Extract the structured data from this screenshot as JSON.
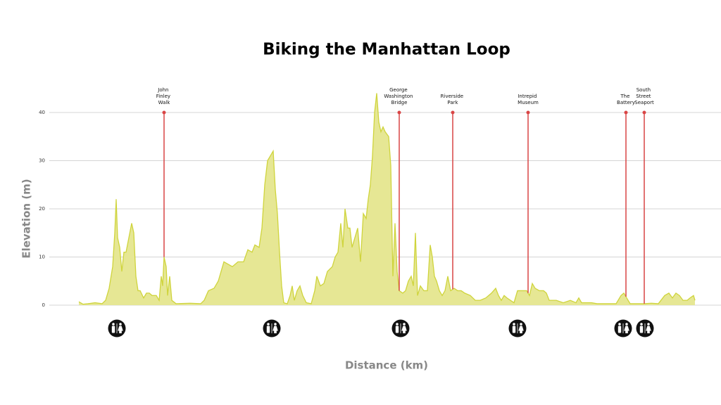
{
  "chart_data": {
    "type": "area",
    "title": "Biking the Manhattan Loop",
    "xlabel": "Distance (km)",
    "ylabel": "Elevation (m)",
    "x": [
      0,
      0.3,
      0.65,
      1.15,
      1.65,
      1.9,
      2.15,
      2.4,
      2.55,
      2.65,
      2.75,
      2.9,
      3.05,
      3.2,
      3.35,
      3.55,
      3.75,
      3.9,
      4.05,
      4.2,
      4.35,
      4.6,
      4.8,
      5,
      5.2,
      5.5,
      5.7,
      5.85,
      5.95,
      6.05,
      6.2,
      6.3,
      6.45,
      6.6,
      6.9,
      7.9,
      8.65,
      8.9,
      9.2,
      9.6,
      9.9,
      10.3,
      10.6,
      10.9,
      11.3,
      11.7,
      12,
      12.3,
      12.5,
      12.8,
      13,
      13.2,
      13.4,
      13.6,
      13.8,
      13.95,
      14.1,
      14.25,
      14.4,
      14.55,
      14.8,
      15,
      15.15,
      15.3,
      15.5,
      15.7,
      15.9,
      16.15,
      16.5,
      16.75,
      16.9,
      17.15,
      17.4,
      17.65,
      18,
      18.2,
      18.4,
      18.6,
      18.75,
      18.9,
      19.1,
      19.25,
      19.4,
      19.6,
      19.8,
      20,
      20.2,
      20.4,
      20.55,
      20.7,
      20.85,
      21,
      21.15,
      21.3,
      21.45,
      21.6,
      21.75,
      22,
      22.15,
      22.3,
      22.45,
      22.6,
      22.75,
      23,
      23.2,
      23.4,
      23.6,
      23.75,
      23.9,
      24.05,
      24.25,
      24.5,
      24.75,
      24.95,
      25.1,
      25.25,
      25.4,
      25.6,
      25.8,
      26,
      26.2,
      26.4,
      26.65,
      26.9,
      27.15,
      27.4,
      27.8,
      28.15,
      28.5,
      28.9,
      29.3,
      29.6,
      29.8,
      30,
      30.2,
      30.4,
      30.65,
      30.9,
      31.15,
      31.4,
      31.8,
      32,
      32.2,
      32.4,
      32.7,
      33,
      33.2,
      33.4,
      33.9,
      34.4,
      34.9,
      35.3,
      35.5,
      35.7,
      36.4,
      36.8,
      37.4,
      38.15,
      38.5,
      38.7,
      38.9,
      39.15,
      39.65,
      40.15,
      40.65,
      41.15,
      41.6,
      41.9,
      42.15,
      42.4,
      42.65,
      42.9,
      43.2,
      43.4,
      43.65,
      43.75
    ],
    "values": [
      0.7,
      0.2,
      0.3,
      0.5,
      0.3,
      1,
      3.5,
      8,
      15,
      22,
      14,
      12,
      7,
      11,
      11,
      14,
      17,
      15,
      6,
      3,
      3,
      1.5,
      2.5,
      2.5,
      2,
      2,
      1,
      6,
      4,
      10,
      8,
      2,
      6,
      1,
      0.3,
      0.4,
      0.3,
      1,
      3,
      3.5,
      5,
      9,
      8.5,
      8,
      9,
      9,
      11.5,
      11,
      12.5,
      12,
      16,
      25,
      30,
      31,
      32,
      24,
      19,
      11,
      4,
      0.5,
      0.3,
      2,
      4,
      1,
      3,
      4,
      2,
      0.5,
      0.3,
      3,
      6,
      4,
      4.5,
      7,
      8,
      10,
      11,
      17,
      12,
      20,
      16,
      16,
      12,
      14,
      16,
      9,
      19,
      18,
      22,
      25,
      31,
      40,
      44,
      38,
      36,
      37,
      36,
      35,
      29,
      6,
      17,
      7,
      3,
      2.5,
      3,
      5,
      6,
      4,
      15,
      2,
      4,
      3,
      3,
      12.5,
      10,
      6,
      5,
      3,
      2,
      3,
      6,
      3,
      3.5,
      3,
      3,
      2.5,
      2,
      1,
      1,
      1.5,
      2.5,
      3.5,
      2,
      1,
      2,
      1.5,
      1,
      0.5,
      3,
      3,
      3,
      2,
      4.5,
      3.5,
      3,
      3,
      2.5,
      1,
      1,
      0.5,
      1,
      0.5,
      1.5,
      0.5,
      0.5,
      0.3,
      0.3,
      0.3,
      2,
      2.5,
      1.5,
      0.3,
      0.3,
      0.3,
      0.4,
      0.3,
      2,
      2.5,
      1.5,
      2.5,
      2,
      1,
      1,
      1.5,
      2,
      1
    ],
    "fill_color": "#e6e794",
    "line_color": "#cfd43c",
    "xlim": [
      -2.1,
      45.6
    ],
    "ylim": [
      0,
      45
    ],
    "yticks": [
      0,
      10,
      20,
      30,
      40
    ],
    "grid": true,
    "landmarks": {
      "names": [
        "John Finley Walk",
        "George Washington Bridge",
        "Riverside Park",
        "Intrepid Museum",
        "The Battery",
        "South Street Seaport"
      ],
      "x": [
        6.05,
        22.75,
        26.55,
        31.9,
        38.85,
        40.15
      ],
      "y": 40,
      "color": "#d94545"
    },
    "restrooms": [
      2.7,
      13.7,
      22.85,
      31.15,
      38.65,
      40.2
    ]
  }
}
